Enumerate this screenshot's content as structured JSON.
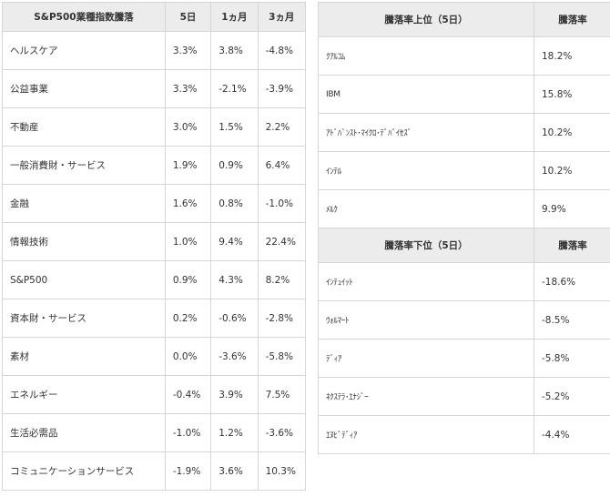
{
  "sector_table": {
    "headers": [
      "S&P500業種指数騰落",
      "5日",
      "1ヵ月",
      "3ヵ月"
    ],
    "rows": [
      {
        "name": "ヘルスケア",
        "d5": "3.3%",
        "m1": "3.8%",
        "m3": "-4.8%"
      },
      {
        "name": "公益事業",
        "d5": "3.3%",
        "m1": "-2.1%",
        "m3": "-3.9%"
      },
      {
        "name": "不動産",
        "d5": "3.0%",
        "m1": "1.5%",
        "m3": "2.2%"
      },
      {
        "name": "一般消費財・サービス",
        "d5": "1.9%",
        "m1": "0.9%",
        "m3": "6.4%"
      },
      {
        "name": "金融",
        "d5": "1.6%",
        "m1": "0.8%",
        "m3": "-1.0%"
      },
      {
        "name": "情報技術",
        "d5": "1.0%",
        "m1": "9.4%",
        "m3": "22.4%"
      },
      {
        "name": "S&P500",
        "d5": "0.9%",
        "m1": "4.3%",
        "m3": "8.2%"
      },
      {
        "name": "資本財・サービス",
        "d5": "0.2%",
        "m1": "-0.6%",
        "m3": "-2.8%"
      },
      {
        "name": "素材",
        "d5": "0.0%",
        "m1": "-3.6%",
        "m3": "-5.8%"
      },
      {
        "name": "エネルギー",
        "d5": "-0.4%",
        "m1": "3.9%",
        "m3": "7.5%"
      },
      {
        "name": "生活必需品",
        "d5": "-1.0%",
        "m1": "1.2%",
        "m3": "-3.6%"
      },
      {
        "name": "コミュニケーションサービス",
        "d5": "-1.9%",
        "m1": "3.6%",
        "m3": "10.3%"
      }
    ]
  },
  "gainers": {
    "headers": [
      "騰落率上位（5日）",
      "騰落率"
    ],
    "rows": [
      {
        "name": "ｸｱﾙｺﾑ",
        "pct": "18.2%"
      },
      {
        "name": "IBM",
        "pct": "15.8%"
      },
      {
        "name": "ｱﾄﾞﾊﾞﾝｽﾄ･ﾏｲｸﾛ･ﾃﾞﾊﾞｲｾｽﾞ",
        "pct": "10.2%"
      },
      {
        "name": "ｲﾝﾃﾙ",
        "pct": "10.2%"
      },
      {
        "name": "ﾒﾙｸ",
        "pct": "9.9%"
      }
    ]
  },
  "losers": {
    "headers": [
      "騰落率下位（5日）",
      "騰落率"
    ],
    "rows": [
      {
        "name": "ｲﾝﾃｭｲｯﾄ",
        "pct": "-18.6%"
      },
      {
        "name": "ｳｫﾙﾏｰﾄ",
        "pct": "-8.5%"
      },
      {
        "name": "ﾃﾞｨｱ",
        "pct": "-5.8%"
      },
      {
        "name": "ﾈｸｽﾃﾗ･ｴﾅｼﾞｰ",
        "pct": "-5.2%"
      },
      {
        "name": "ｴﾇﾋﾞﾃﾞｨｱ",
        "pct": "-4.4%"
      }
    ]
  }
}
